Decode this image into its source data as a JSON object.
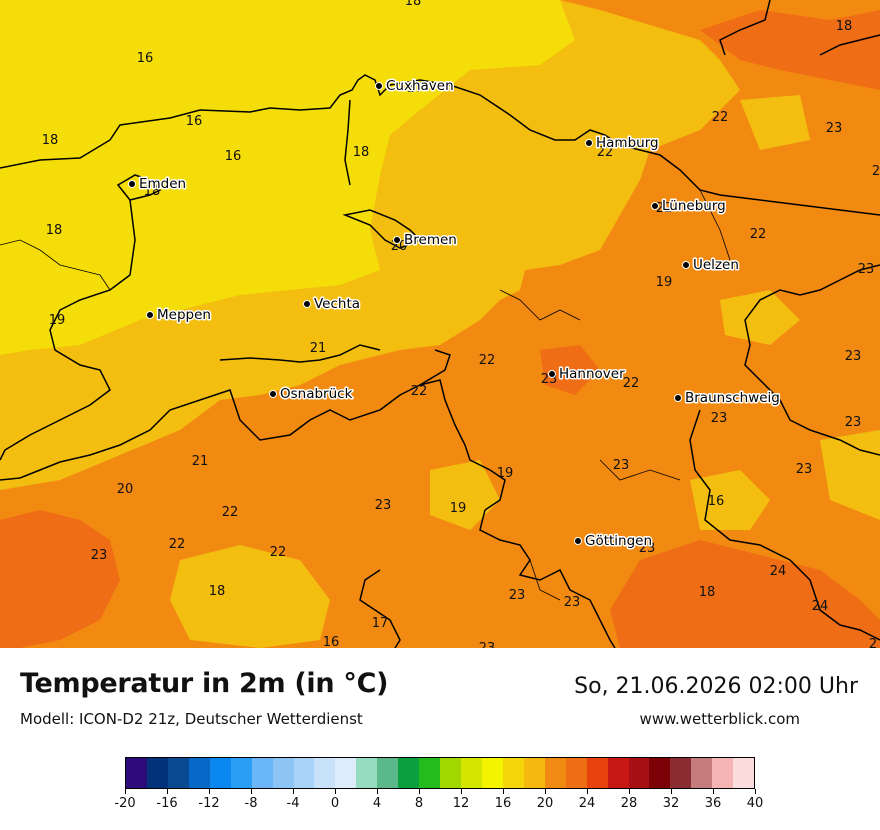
{
  "title": "Temperatur in 2m (in °C)",
  "model": "Modell: ICON-D2 21z, Deutscher Wetterdienst",
  "datetime": "So, 21.06.2026 02:00 Uhr",
  "website": "www.wetterblick.com",
  "colors": {
    "zone_16": "#f4dd08",
    "zone_19": "#f3be10",
    "zone_22": "#f28a12",
    "zone_24": "#ef6d14",
    "border": "#000000"
  },
  "cities": [
    {
      "name": "Cuxhaven"
    },
    {
      "name": "Hamburg"
    },
    {
      "name": "Emden"
    },
    {
      "name": "Bremen"
    },
    {
      "name": "Lüneburg"
    },
    {
      "name": "Uelzen"
    },
    {
      "name": "Vechta"
    },
    {
      "name": "Meppen"
    },
    {
      "name": "Hannover"
    },
    {
      "name": "Osnabrück"
    },
    {
      "name": "Braunschweig"
    },
    {
      "name": "Göttingen"
    }
  ],
  "values": [
    "18",
    "18",
    "16",
    "17",
    "16",
    "18",
    "16",
    "18",
    "18",
    "18",
    "20",
    "22",
    "22",
    "23",
    "22",
    "22",
    "19",
    "23",
    "19",
    "21",
    "22",
    "23",
    "22",
    "22",
    "23",
    "23",
    "23",
    "21",
    "20",
    "22",
    "19",
    "19",
    "23",
    "23",
    "16",
    "23",
    "22",
    "22",
    "23",
    "18",
    "23",
    "24",
    "24",
    "23",
    "23",
    "16",
    "17",
    "18",
    "2",
    "2"
  ],
  "colorbar": {
    "colors": [
      "#2e0b7a",
      "#02327a",
      "#0a4a93",
      "#0868c8",
      "#0a88f0",
      "#2a9ef5",
      "#6ab6f7",
      "#8cc4f6",
      "#a8d2f7",
      "#c8e2fa",
      "#dcecfb",
      "#96dcc0",
      "#5ab88a",
      "#0aa040",
      "#24bb1c",
      "#a0d800",
      "#d4e600",
      "#f4f400",
      "#f4d40a",
      "#f4b80e",
      "#f08a12",
      "#ee6e14",
      "#e8420e",
      "#c81814",
      "#a81016",
      "#7c0208",
      "#8a2c30",
      "#c47c7c",
      "#f4b4b4",
      "#fadcdc"
    ],
    "ticks": [
      "-20",
      "-16",
      "-12",
      "-8",
      "-4",
      "0",
      "4",
      "8",
      "12",
      "16",
      "20",
      "24",
      "28",
      "32",
      "36",
      "40"
    ]
  }
}
